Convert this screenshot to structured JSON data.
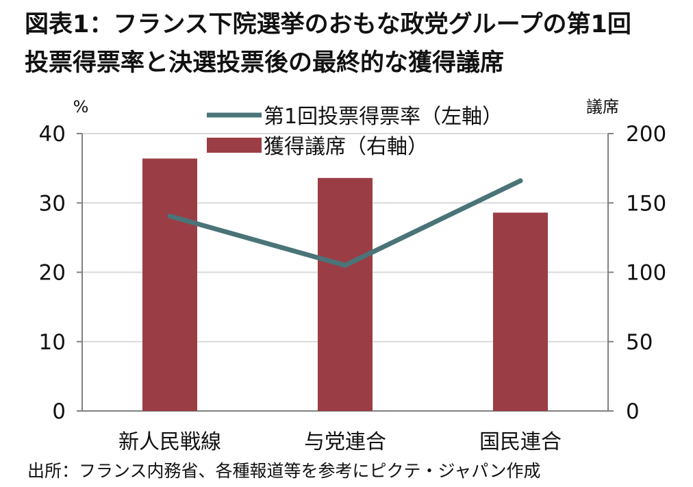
{
  "title_lines": [
    "図表1：フランス下院選挙のおもな政党グループの第1回",
    "投票得票率と決選投票後の最終的な獲得議席"
  ],
  "source": "出所：フランス内務省、各種報道等を参考にピクテ・ジャパン作成",
  "colors": {
    "bar": "#9b3d45",
    "line": "#4a7478",
    "grid": "#d9d9d9",
    "axis": "#808080"
  },
  "chart_data": {
    "type": "bar",
    "categories": [
      "新人民戦線",
      "与党連合",
      "国民連合"
    ],
    "series": [
      {
        "name": "第1回投票得票率（左軸）",
        "type": "line",
        "axis": "left",
        "values": [
          28.1,
          21.0,
          33.2
        ]
      },
      {
        "name": "獲得議席（右軸）",
        "type": "bar",
        "axis": "right",
        "values": [
          182,
          168,
          143
        ]
      }
    ],
    "left_axis": {
      "label": "%",
      "min": 0,
      "max": 40,
      "ticks": [
        0,
        10,
        20,
        30,
        40
      ]
    },
    "right_axis": {
      "label": "議席",
      "min": 0,
      "max": 200,
      "ticks": [
        0,
        50,
        100,
        150,
        200
      ]
    },
    "grid": true,
    "legend_position": "top"
  }
}
